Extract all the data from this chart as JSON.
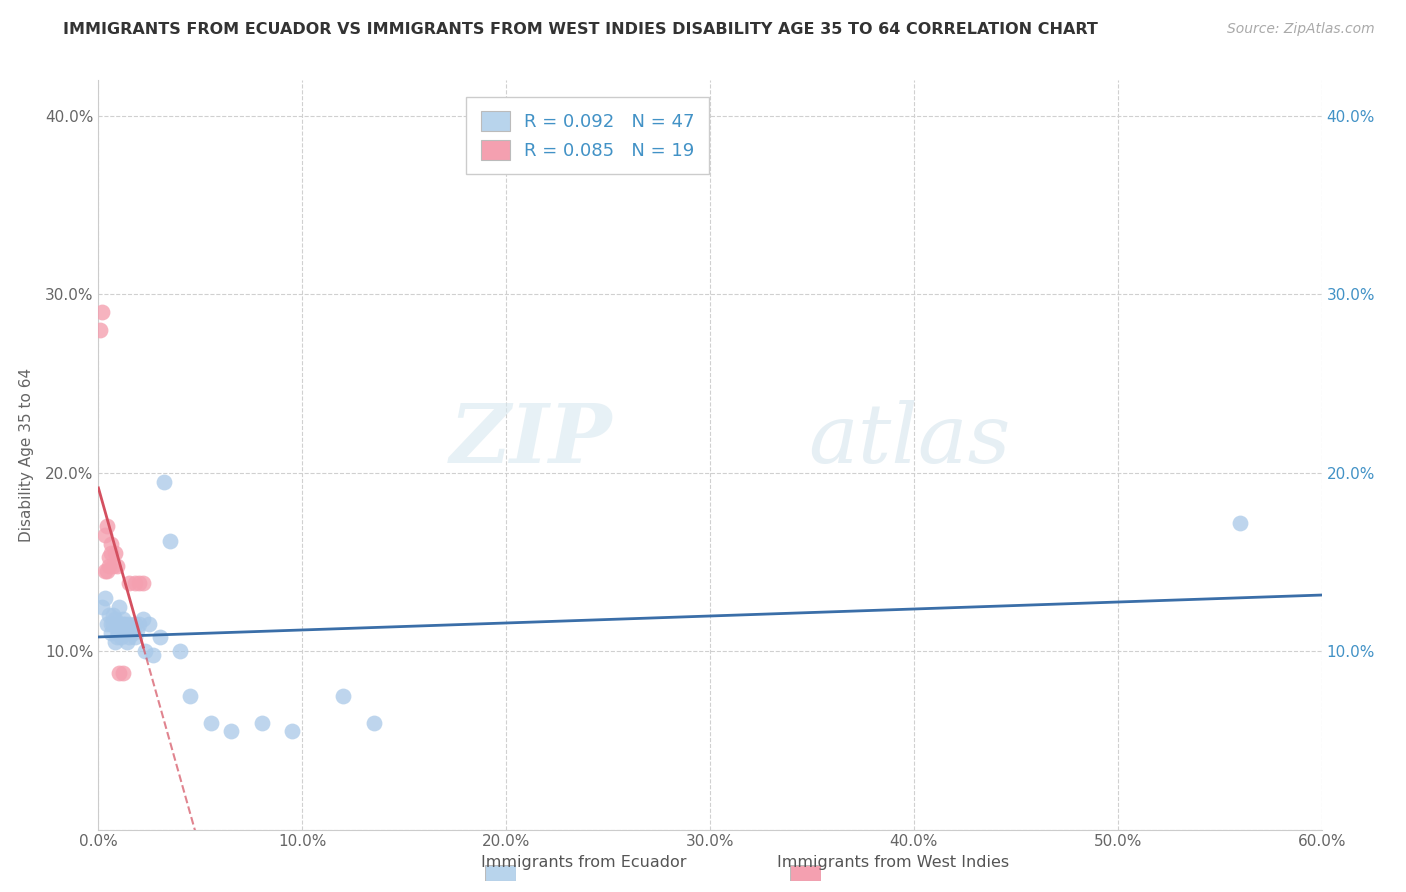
{
  "title": "IMMIGRANTS FROM ECUADOR VS IMMIGRANTS FROM WEST INDIES DISABILITY AGE 35 TO 64 CORRELATION CHART",
  "source": "Source: ZipAtlas.com",
  "ylabel": "Disability Age 35 to 64",
  "xlim": [
    0.0,
    0.6
  ],
  "ylim": [
    0.0,
    0.42
  ],
  "xtick_vals": [
    0.0,
    0.1,
    0.2,
    0.3,
    0.4,
    0.5,
    0.6
  ],
  "ytick_vals": [
    0.0,
    0.1,
    0.2,
    0.3,
    0.4
  ],
  "ytick_vals_right": [
    0.1,
    0.2,
    0.3,
    0.4
  ],
  "ecuador_color": "#a8c8e8",
  "ecuador_color_line": "#3a6ea8",
  "westindies_color": "#f4a0b0",
  "westindies_color_line": "#d45060",
  "legend_ecuador_fill": "#b8d4ec",
  "legend_westindies_fill": "#f4a0b0",
  "R_ecuador": 0.092,
  "N_ecuador": 47,
  "R_westindies": 0.085,
  "N_westindies": 19,
  "ecuador_x": [
    0.002,
    0.003,
    0.004,
    0.005,
    0.006,
    0.006,
    0.007,
    0.007,
    0.008,
    0.008,
    0.009,
    0.009,
    0.01,
    0.01,
    0.01,
    0.011,
    0.011,
    0.012,
    0.012,
    0.013,
    0.013,
    0.014,
    0.014,
    0.015,
    0.015,
    0.016,
    0.017,
    0.018,
    0.018,
    0.019,
    0.02,
    0.022,
    0.023,
    0.025,
    0.027,
    0.03,
    0.032,
    0.035,
    0.04,
    0.045,
    0.055,
    0.065,
    0.08,
    0.095,
    0.12,
    0.135,
    0.56
  ],
  "ecuador_y": [
    0.125,
    0.13,
    0.115,
    0.12,
    0.11,
    0.115,
    0.115,
    0.12,
    0.105,
    0.118,
    0.112,
    0.108,
    0.115,
    0.11,
    0.125,
    0.112,
    0.108,
    0.115,
    0.118,
    0.11,
    0.115,
    0.105,
    0.112,
    0.115,
    0.108,
    0.113,
    0.11,
    0.115,
    0.108,
    0.112,
    0.115,
    0.118,
    0.1,
    0.115,
    0.098,
    0.108,
    0.195,
    0.162,
    0.1,
    0.075,
    0.06,
    0.055,
    0.06,
    0.055,
    0.075,
    0.06,
    0.172
  ],
  "westindies_x": [
    0.001,
    0.002,
    0.003,
    0.003,
    0.004,
    0.004,
    0.005,
    0.005,
    0.006,
    0.006,
    0.007,
    0.008,
    0.009,
    0.01,
    0.012,
    0.015,
    0.018,
    0.02,
    0.022
  ],
  "westindies_y": [
    0.28,
    0.29,
    0.145,
    0.165,
    0.145,
    0.17,
    0.148,
    0.153,
    0.155,
    0.16,
    0.148,
    0.155,
    0.148,
    0.088,
    0.088,
    0.138,
    0.138,
    0.138,
    0.138
  ],
  "watermark_zip": "ZIP",
  "watermark_atlas": "atlas",
  "background_color": "#ffffff",
  "grid_color": "#d0d0d0",
  "legend_text_color": "#4292c6",
  "right_axis_color": "#4292c6",
  "title_color": "#333333",
  "label_color": "#666666"
}
